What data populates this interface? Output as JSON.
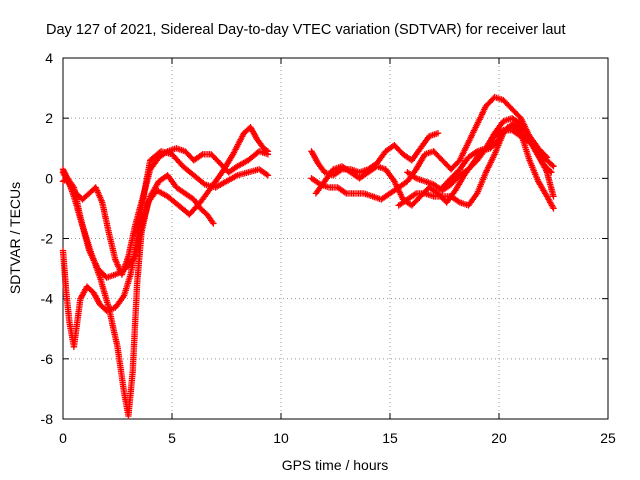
{
  "chart_data": {
    "type": "scatter",
    "title": "Day 127 of 2021, Sidereal Day-to-day VTEC variation (SDTVAR) for receiver laut",
    "xlabel": "GPS time / hours",
    "ylabel": "SDTVAR / TECUs",
    "xlim": [
      0,
      25
    ],
    "ylim": [
      -8,
      4
    ],
    "xticks": [
      0,
      5,
      10,
      15,
      20,
      25
    ],
    "yticks": [
      -8,
      -6,
      -4,
      -2,
      0,
      2,
      4
    ],
    "xtick_labels": [
      "0",
      "5",
      "10",
      "15",
      "20",
      "25"
    ],
    "ytick_labels": [
      "-8",
      "-6",
      "-4",
      "-2",
      "0",
      "2",
      "4"
    ],
    "grid": true,
    "marker": "+",
    "color": "#ff0000",
    "series": [
      {
        "x": [
          0.0,
          0.2,
          0.5,
          0.9,
          1.3,
          1.7,
          2.1,
          2.5,
          2.8,
          3.0,
          3.2,
          3.4,
          3.6,
          3.9,
          4.3,
          4.8,
          5.3,
          5.8,
          6.3,
          6.8,
          7.3,
          7.8,
          8.3,
          8.6,
          8.9,
          9.2,
          9.4
        ],
        "y": [
          0.3,
          0.0,
          -0.6,
          -1.6,
          -2.5,
          -3.3,
          -4.3,
          -5.6,
          -7.1,
          -7.9,
          -6.4,
          -3.5,
          -1.8,
          -0.8,
          -0.4,
          -0.6,
          -0.9,
          -1.2,
          -0.8,
          -0.3,
          0.2,
          0.8,
          1.5,
          1.7,
          1.3,
          1.0,
          0.9
        ]
      },
      {
        "x": [
          0.0,
          0.2,
          0.5,
          0.8,
          1.2,
          1.6,
          2.0,
          2.4,
          2.7,
          3.0,
          3.3,
          3.6,
          4.0,
          4.4,
          4.8,
          5.2,
          5.6,
          6.0,
          6.3,
          6.6,
          6.9
        ],
        "y": [
          -0.1,
          0.0,
          -0.3,
          -1.3,
          -2.4,
          -3.0,
          -3.3,
          -3.2,
          -3.1,
          -2.9,
          -2.6,
          -1.6,
          -0.6,
          -0.1,
          0.1,
          -0.3,
          -0.5,
          -0.7,
          -1.0,
          -1.2,
          -1.5
        ]
      },
      {
        "x": [
          0.0,
          0.15,
          0.3,
          0.5,
          0.8,
          1.1,
          1.4,
          1.7,
          2.0,
          2.4,
          2.8,
          3.1,
          3.4,
          3.7,
          4.0,
          4.5,
          5.0,
          5.5,
          6.0,
          6.5,
          7.0,
          7.5,
          8.0,
          8.5,
          9.0,
          9.4
        ],
        "y": [
          -2.4,
          -3.8,
          -4.8,
          -5.6,
          -4.0,
          -3.6,
          -3.8,
          -4.2,
          -4.4,
          -4.3,
          -3.9,
          -3.2,
          -2.0,
          -0.6,
          0.6,
          0.9,
          0.8,
          0.4,
          0.1,
          -0.2,
          -0.3,
          -0.1,
          0.1,
          0.2,
          0.3,
          0.1
        ]
      },
      {
        "x": [
          0.0,
          0.3,
          0.6,
          0.9,
          1.2,
          1.5,
          1.8,
          2.1,
          2.4,
          2.7,
          3.0,
          3.3,
          3.6,
          4.0,
          4.4,
          4.8,
          5.2,
          5.6,
          6.0,
          6.4,
          6.8,
          7.2,
          7.6,
          8.0,
          8.5,
          9.0,
          9.4
        ],
        "y": [
          0.2,
          -0.2,
          -0.5,
          -0.7,
          -0.5,
          -0.3,
          -0.8,
          -1.8,
          -2.7,
          -3.2,
          -2.6,
          -1.6,
          -0.8,
          0.3,
          0.7,
          0.9,
          1.0,
          0.9,
          0.6,
          0.8,
          0.8,
          0.5,
          0.2,
          0.4,
          0.6,
          0.9,
          0.8
        ]
      },
      {
        "x": [
          11.4,
          11.7,
          12.0,
          12.4,
          12.8,
          13.2,
          13.6,
          14.0,
          14.4,
          14.8,
          15.2,
          15.6,
          16.0,
          16.4,
          16.8,
          17.2
        ],
        "y": [
          0.9,
          0.5,
          0.2,
          0.1,
          0.3,
          0.3,
          0.2,
          0.3,
          0.5,
          0.9,
          1.1,
          0.8,
          0.6,
          1.0,
          1.4,
          1.5
        ]
      },
      {
        "x": [
          11.4,
          11.8,
          12.2,
          12.6,
          13.0,
          13.4,
          13.8,
          14.2,
          14.6,
          15.0,
          15.4,
          15.8,
          16.2,
          16.6,
          17.0,
          17.4,
          17.8,
          18.2,
          18.6,
          19.0,
          19.4,
          19.8,
          20.2,
          20.6,
          21.0,
          21.4,
          21.8,
          22.2
        ],
        "y": [
          0.0,
          -0.2,
          -0.3,
          -0.3,
          -0.5,
          -0.5,
          -0.5,
          -0.6,
          -0.7,
          -0.5,
          -0.3,
          -0.1,
          0.3,
          0.8,
          0.9,
          0.6,
          0.3,
          0.6,
          1.2,
          1.8,
          2.4,
          2.7,
          2.6,
          2.3,
          2.0,
          1.4,
          1.0,
          0.7
        ]
      },
      {
        "x": [
          11.6,
          12.0,
          12.4,
          12.8,
          13.2,
          13.6,
          14.0,
          14.4,
          14.8,
          15.2,
          15.6,
          16.0,
          16.4,
          16.8,
          17.2,
          17.6,
          18.0,
          18.4,
          18.8,
          19.2,
          19.6,
          20.0,
          20.4,
          20.8,
          21.2,
          21.6,
          22.0,
          22.4
        ],
        "y": [
          -0.5,
          -0.1,
          0.3,
          0.4,
          0.2,
          0.0,
          0.2,
          0.4,
          0.3,
          -0.1,
          -0.7,
          -0.9,
          -0.6,
          -0.3,
          -0.5,
          -0.8,
          -0.4,
          0.1,
          0.5,
          0.9,
          1.0,
          1.3,
          1.7,
          1.8,
          1.5,
          1.0,
          0.5,
          0.2
        ]
      },
      {
        "x": [
          15.4,
          15.8,
          16.2,
          16.6,
          17.0,
          17.4,
          17.8,
          18.2,
          18.6,
          19.0,
          19.4,
          19.8,
          20.2,
          20.6,
          21.0,
          21.4,
          21.8,
          22.2,
          22.5
        ],
        "y": [
          -0.9,
          -0.7,
          -0.5,
          -0.5,
          -0.6,
          -0.6,
          -0.6,
          -0.8,
          -0.9,
          -0.5,
          0.2,
          0.8,
          1.5,
          1.8,
          1.5,
          0.6,
          -0.1,
          -0.6,
          -1.0
        ]
      },
      {
        "x": [
          15.8,
          16.2,
          16.6,
          17.0,
          17.4,
          17.8,
          18.2,
          18.6,
          19.0,
          19.4,
          19.8,
          20.2,
          20.6,
          21.0,
          21.4,
          21.8,
          22.2,
          22.5
        ],
        "y": [
          0.2,
          0.0,
          -0.1,
          -0.2,
          -0.4,
          -0.2,
          0.1,
          0.3,
          0.6,
          1.0,
          1.4,
          1.6,
          1.6,
          1.4,
          1.2,
          0.9,
          0.6,
          0.4
        ]
      },
      {
        "x": [
          17.4,
          17.8,
          18.2,
          18.6,
          19.0,
          19.4,
          19.8,
          20.2,
          20.6,
          21.0,
          21.4,
          21.8,
          22.2,
          22.5
        ],
        "y": [
          -0.3,
          0.0,
          0.3,
          0.7,
          0.9,
          1.0,
          1.5,
          1.9,
          2.0,
          1.8,
          1.4,
          0.8,
          0.2,
          -0.6
        ]
      }
    ]
  }
}
